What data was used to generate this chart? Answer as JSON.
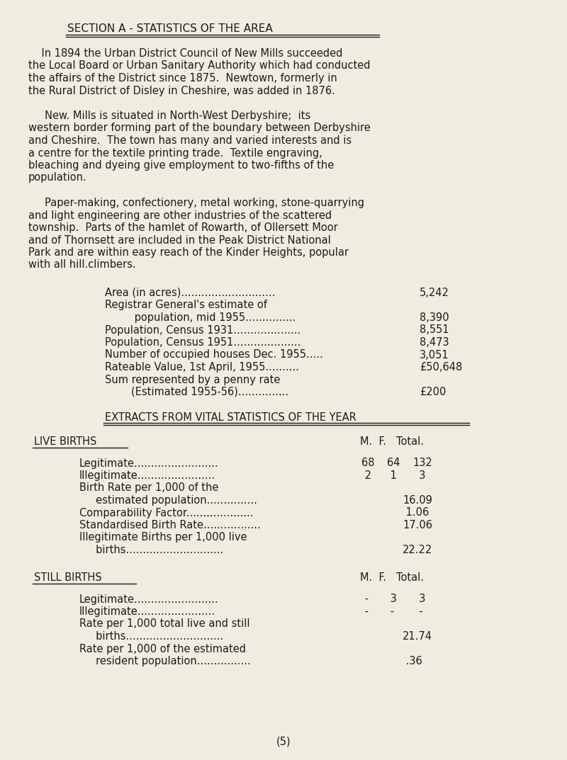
{
  "bg_color": "#f0ede0",
  "text_color": "#1a1a1a",
  "title": "SECTION A - STATISTICS OF THE AREA",
  "para1_lines": [
    "    In 1894 the Urban District Council of New Mills succeeded",
    "the Local Board or Urban Sanitary Authority which had conducted",
    "the affairs of the District since 1875.  Newtown, formerly in",
    "the Rural District of Disley in Cheshire, was added in 1876."
  ],
  "para2_lines": [
    "     New. Mills is situated in North-West Derbyshire;  its",
    "western border forming part of the boundary between Derbyshire",
    "and Cheshire.  The town has many and varied interests and is",
    "a centre for the textile printing trade.  Textile engraving,",
    "bleaching and dyeing give employment to two-fifths of the",
    "population."
  ],
  "para3_lines": [
    "     Paper-making, confectionery, metal working, stone-quarrying",
    "and light engineering are other industries of the scattered",
    "township.  Parts of the hamlet of Rowarth, of Ollersett Moor",
    "and of Thornsett are included in the Peak District National",
    "Park and are within easy reach of the Kinder Heights, popular",
    "with all hill.climbers."
  ],
  "stats_lines": [
    [
      "Area (in acres)............................",
      "5,242"
    ],
    [
      "Registrar General's estimate of",
      ""
    ],
    [
      "         population, mid 1955...............",
      "8,390"
    ],
    [
      "Population, Census 1931....................",
      "8,551"
    ],
    [
      "Population, Census 1951....................",
      "8,473"
    ],
    [
      "Number of occupied houses Dec. 1955.....",
      "3,051"
    ],
    [
      "Rateable Value, 1st April, 1955..........",
      "£50,648"
    ],
    [
      "Sum represented by a penny rate",
      ""
    ],
    [
      "        (Estimated 1955-56)...............",
      "£200"
    ]
  ],
  "section2_title": "EXTRACTS FROM VITAL STATISTICS OF THE YEAR",
  "live_births_header": "LIVE BIRTHS",
  "mf_header": "M.  F.   Total.",
  "live_births_rows": [
    [
      "Legitimate.........................",
      "68",
      "64",
      "132"
    ],
    [
      "Illegitimate.......................",
      " 2",
      " 1",
      "  3"
    ]
  ],
  "live_births_extra": [
    [
      "Birth Rate per 1,000 of the",
      ""
    ],
    [
      "     estimated population...............",
      "16.09"
    ],
    [
      "Comparability Factor....................",
      " 1.06"
    ],
    [
      "Standardised Birth Rate.................",
      "17.06"
    ],
    [
      "Illegitimate Births per 1,000 live",
      ""
    ],
    [
      "     births.............................",
      "22.22"
    ]
  ],
  "still_births_header": "STILL BIRTHS",
  "still_mf_header": "M.  F.   Total.",
  "still_births_rows": [
    [
      "Legitimate.........................",
      " -",
      " 3",
      "  3"
    ],
    [
      "Illegitimate.......................",
      " -",
      " -",
      "  -"
    ]
  ],
  "still_births_extra": [
    [
      "Rate per 1,000 total live and still",
      ""
    ],
    [
      "     births.............................",
      "21.74"
    ],
    [
      "Rate per 1,000 of the estimated",
      ""
    ],
    [
      "     resident population................",
      " .36"
    ]
  ],
  "page_num": "(5)",
  "font_size": 10.5,
  "title_font_size": 11.0,
  "section2_font_size": 10.5
}
